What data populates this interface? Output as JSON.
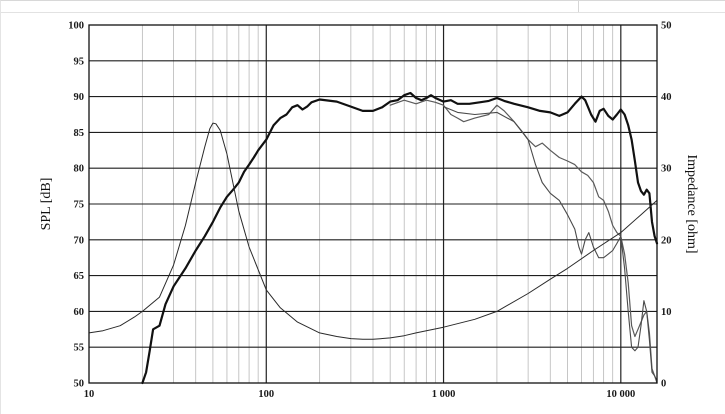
{
  "chart_data": {
    "type": "line",
    "x_scale": "log",
    "xlim": [
      10,
      16000
    ],
    "ylim_left": [
      50,
      100
    ],
    "ylim_right": [
      0,
      50
    ],
    "ylabel_left": "SPL [dB]",
    "ylabel_right": "Impedance [ohm]",
    "x_ticks": [
      {
        "value": 10,
        "label": "10"
      },
      {
        "value": 100,
        "label": "100"
      },
      {
        "value": 1000,
        "label": "1 000"
      },
      {
        "value": 10000,
        "label": "10 000"
      }
    ],
    "y_ticks_left": [
      50,
      55,
      60,
      65,
      70,
      75,
      80,
      85,
      90,
      95,
      100
    ],
    "y_ticks_right": [
      0,
      10,
      20,
      30,
      40,
      50
    ],
    "grid": true,
    "series": [
      {
        "axis": "left",
        "stroke": "#111111",
        "width": 2.2,
        "points": [
          [
            20,
            50
          ],
          [
            21,
            51.5
          ],
          [
            22,
            54.5
          ],
          [
            23,
            57.5
          ],
          [
            25,
            58
          ],
          [
            27,
            61
          ],
          [
            30,
            63.5
          ],
          [
            35,
            66
          ],
          [
            40,
            68.5
          ],
          [
            45,
            70.5
          ],
          [
            50,
            72.5
          ],
          [
            55,
            74.5
          ],
          [
            60,
            76
          ],
          [
            65,
            77
          ],
          [
            70,
            78
          ],
          [
            75,
            79.5
          ],
          [
            80,
            80.5
          ],
          [
            85,
            81.5
          ],
          [
            90,
            82.5
          ],
          [
            100,
            84
          ],
          [
            110,
            86
          ],
          [
            120,
            87
          ],
          [
            130,
            87.5
          ],
          [
            140,
            88.5
          ],
          [
            150,
            88.8
          ],
          [
            160,
            88.2
          ],
          [
            170,
            88.6
          ],
          [
            180,
            89.2
          ],
          [
            200,
            89.6
          ],
          [
            250,
            89.3
          ],
          [
            300,
            88.6
          ],
          [
            350,
            88
          ],
          [
            400,
            88
          ],
          [
            450,
            88.5
          ],
          [
            500,
            89.3
          ],
          [
            550,
            89.5
          ],
          [
            600,
            90.2
          ],
          [
            650,
            90.5
          ],
          [
            700,
            89.8
          ],
          [
            750,
            89.5
          ],
          [
            800,
            89.8
          ],
          [
            850,
            90.2
          ],
          [
            900,
            89.8
          ],
          [
            1000,
            89.3
          ],
          [
            1100,
            89.5
          ],
          [
            1200,
            89
          ],
          [
            1400,
            89
          ],
          [
            1600,
            89.2
          ],
          [
            1800,
            89.4
          ],
          [
            2000,
            89.8
          ],
          [
            2200,
            89.4
          ],
          [
            2500,
            89
          ],
          [
            3000,
            88.5
          ],
          [
            3500,
            88
          ],
          [
            4000,
            87.8
          ],
          [
            4500,
            87.3
          ],
          [
            5000,
            87.8
          ],
          [
            5500,
            89
          ],
          [
            6000,
            90
          ],
          [
            6300,
            89.5
          ],
          [
            6800,
            87.5
          ],
          [
            7200,
            86.5
          ],
          [
            7600,
            88
          ],
          [
            8000,
            88.3
          ],
          [
            8500,
            87.3
          ],
          [
            9000,
            86.8
          ],
          [
            9500,
            87.5
          ],
          [
            10000,
            88.2
          ],
          [
            10500,
            87.5
          ],
          [
            11000,
            86
          ],
          [
            11500,
            84
          ],
          [
            12000,
            81
          ],
          [
            12500,
            78
          ],
          [
            13000,
            76.8
          ],
          [
            13500,
            76.3
          ],
          [
            14000,
            77
          ],
          [
            14500,
            76.5
          ],
          [
            15000,
            72.5
          ],
          [
            15500,
            70.5
          ],
          [
            16000,
            69.5
          ]
        ]
      },
      {
        "axis": "left",
        "stroke": "#5a5a5a",
        "width": 1.2,
        "points": [
          [
            500,
            88.8
          ],
          [
            600,
            89.5
          ],
          [
            700,
            89
          ],
          [
            800,
            89.5
          ],
          [
            900,
            89.2
          ],
          [
            1000,
            88.8
          ],
          [
            1100,
            87.5
          ],
          [
            1200,
            87
          ],
          [
            1300,
            86.5
          ],
          [
            1500,
            87
          ],
          [
            1800,
            87.5
          ],
          [
            2000,
            88.8
          ],
          [
            2200,
            88
          ],
          [
            2500,
            86.5
          ],
          [
            2800,
            85
          ],
          [
            3000,
            84
          ],
          [
            3300,
            83
          ],
          [
            3600,
            83.5
          ],
          [
            4000,
            82.5
          ],
          [
            4500,
            81.5
          ],
          [
            5000,
            81
          ],
          [
            5500,
            80.5
          ],
          [
            6000,
            79.5
          ],
          [
            6500,
            79
          ],
          [
            7000,
            78
          ],
          [
            7500,
            76
          ],
          [
            8000,
            75.5
          ],
          [
            8500,
            74
          ],
          [
            9000,
            72
          ],
          [
            9500,
            71
          ],
          [
            10000,
            70.5
          ],
          [
            10500,
            68
          ],
          [
            11000,
            64
          ],
          [
            11500,
            58
          ],
          [
            12000,
            56.5
          ],
          [
            12500,
            57.5
          ],
          [
            13000,
            58.5
          ],
          [
            13500,
            59.5
          ],
          [
            14000,
            60
          ],
          [
            14500,
            57
          ],
          [
            15000,
            52
          ],
          [
            15500,
            51
          ],
          [
            16000,
            50
          ]
        ]
      },
      {
        "axis": "left",
        "stroke": "#4a4a4a",
        "width": 1.1,
        "points": [
          [
            1000,
            88.6
          ],
          [
            1200,
            87.8
          ],
          [
            1500,
            87.5
          ],
          [
            2000,
            87.8
          ],
          [
            2500,
            86.5
          ],
          [
            3000,
            84
          ],
          [
            3300,
            80.5
          ],
          [
            3600,
            78
          ],
          [
            4000,
            76.5
          ],
          [
            4500,
            75.5
          ],
          [
            5000,
            73.5
          ],
          [
            5500,
            71.5
          ],
          [
            5800,
            69
          ],
          [
            6000,
            68
          ],
          [
            6300,
            70
          ],
          [
            6600,
            71
          ],
          [
            7000,
            69
          ],
          [
            7500,
            67.5
          ],
          [
            8000,
            67.5
          ],
          [
            8500,
            68
          ],
          [
            9000,
            68.5
          ],
          [
            9500,
            69.5
          ],
          [
            10000,
            70.5
          ],
          [
            10500,
            66
          ],
          [
            11000,
            60
          ],
          [
            11500,
            55
          ],
          [
            12000,
            54.5
          ],
          [
            12500,
            55
          ],
          [
            13000,
            58
          ],
          [
            13500,
            61.5
          ],
          [
            14000,
            60
          ],
          [
            14500,
            56
          ],
          [
            15000,
            51.5
          ],
          [
            15500,
            51
          ],
          [
            16000,
            50.3
          ]
        ]
      },
      {
        "axis": "right",
        "stroke": "#2a2a2a",
        "width": 1.0,
        "points": [
          [
            10,
            7
          ],
          [
            12,
            7.3
          ],
          [
            15,
            8
          ],
          [
            18,
            9.2
          ],
          [
            20,
            10
          ],
          [
            25,
            12
          ],
          [
            30,
            16.5
          ],
          [
            35,
            22
          ],
          [
            40,
            28
          ],
          [
            45,
            33
          ],
          [
            48,
            35.5
          ],
          [
            50,
            36.3
          ],
          [
            52,
            36.2
          ],
          [
            55,
            35.3
          ],
          [
            60,
            32
          ],
          [
            70,
            24
          ],
          [
            80,
            19
          ],
          [
            100,
            13
          ],
          [
            120,
            10.5
          ],
          [
            150,
            8.5
          ],
          [
            200,
            7
          ],
          [
            250,
            6.5
          ],
          [
            300,
            6.2
          ],
          [
            350,
            6.1
          ],
          [
            400,
            6.1
          ],
          [
            500,
            6.3
          ],
          [
            600,
            6.6
          ],
          [
            700,
            7
          ],
          [
            800,
            7.3
          ],
          [
            1000,
            7.8
          ],
          [
            1500,
            8.9
          ],
          [
            2000,
            10
          ],
          [
            3000,
            12.5
          ],
          [
            4000,
            14.5
          ],
          [
            5000,
            16
          ],
          [
            7000,
            18.5
          ],
          [
            10000,
            21
          ],
          [
            13000,
            23.5
          ],
          [
            16000,
            25.5
          ]
        ]
      }
    ]
  }
}
